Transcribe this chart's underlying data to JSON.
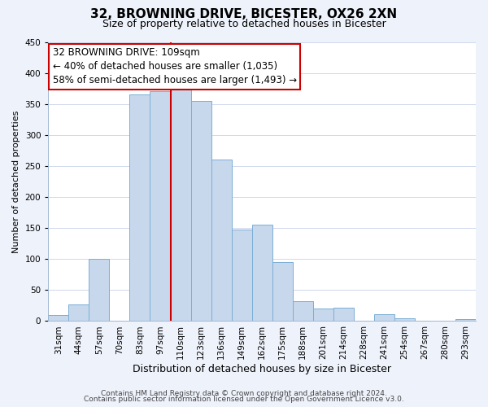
{
  "title": "32, BROWNING DRIVE, BICESTER, OX26 2XN",
  "subtitle": "Size of property relative to detached houses in Bicester",
  "xlabel": "Distribution of detached houses by size in Bicester",
  "ylabel": "Number of detached properties",
  "footer_line1": "Contains HM Land Registry data © Crown copyright and database right 2024.",
  "footer_line2": "Contains public sector information licensed under the Open Government Licence v3.0.",
  "bar_labels": [
    "31sqm",
    "44sqm",
    "57sqm",
    "70sqm",
    "83sqm",
    "97sqm",
    "110sqm",
    "123sqm",
    "136sqm",
    "149sqm",
    "162sqm",
    "175sqm",
    "188sqm",
    "201sqm",
    "214sqm",
    "228sqm",
    "241sqm",
    "254sqm",
    "267sqm",
    "280sqm",
    "293sqm"
  ],
  "bar_heights": [
    10,
    27,
    100,
    0,
    365,
    370,
    375,
    355,
    260,
    148,
    155,
    95,
    32,
    20,
    22,
    0,
    11,
    4,
    0,
    0,
    3
  ],
  "bar_color": "#c8d8ec",
  "bar_edge_color": "#7aaed4",
  "highlight_bar_index": 6,
  "highlight_line_color": "#cc0000",
  "annotation_box_edge_color": "#cc0000",
  "annotation_lines": [
    "32 BROWNING DRIVE: 109sqm",
    "← 40% of detached houses are smaller (1,035)",
    "58% of semi-detached houses are larger (1,493) →"
  ],
  "annotation_fontsize": 8.5,
  "ylim": [
    0,
    450
  ],
  "yticks": [
    0,
    50,
    100,
    150,
    200,
    250,
    300,
    350,
    400,
    450
  ],
  "title_fontsize": 11,
  "subtitle_fontsize": 9,
  "xlabel_fontsize": 9,
  "ylabel_fontsize": 8,
  "tick_fontsize": 7.5,
  "footer_fontsize": 6.5,
  "background_color": "#eef2fb",
  "plot_background_color": "#ffffff",
  "grid_color": "#d0d8ee"
}
